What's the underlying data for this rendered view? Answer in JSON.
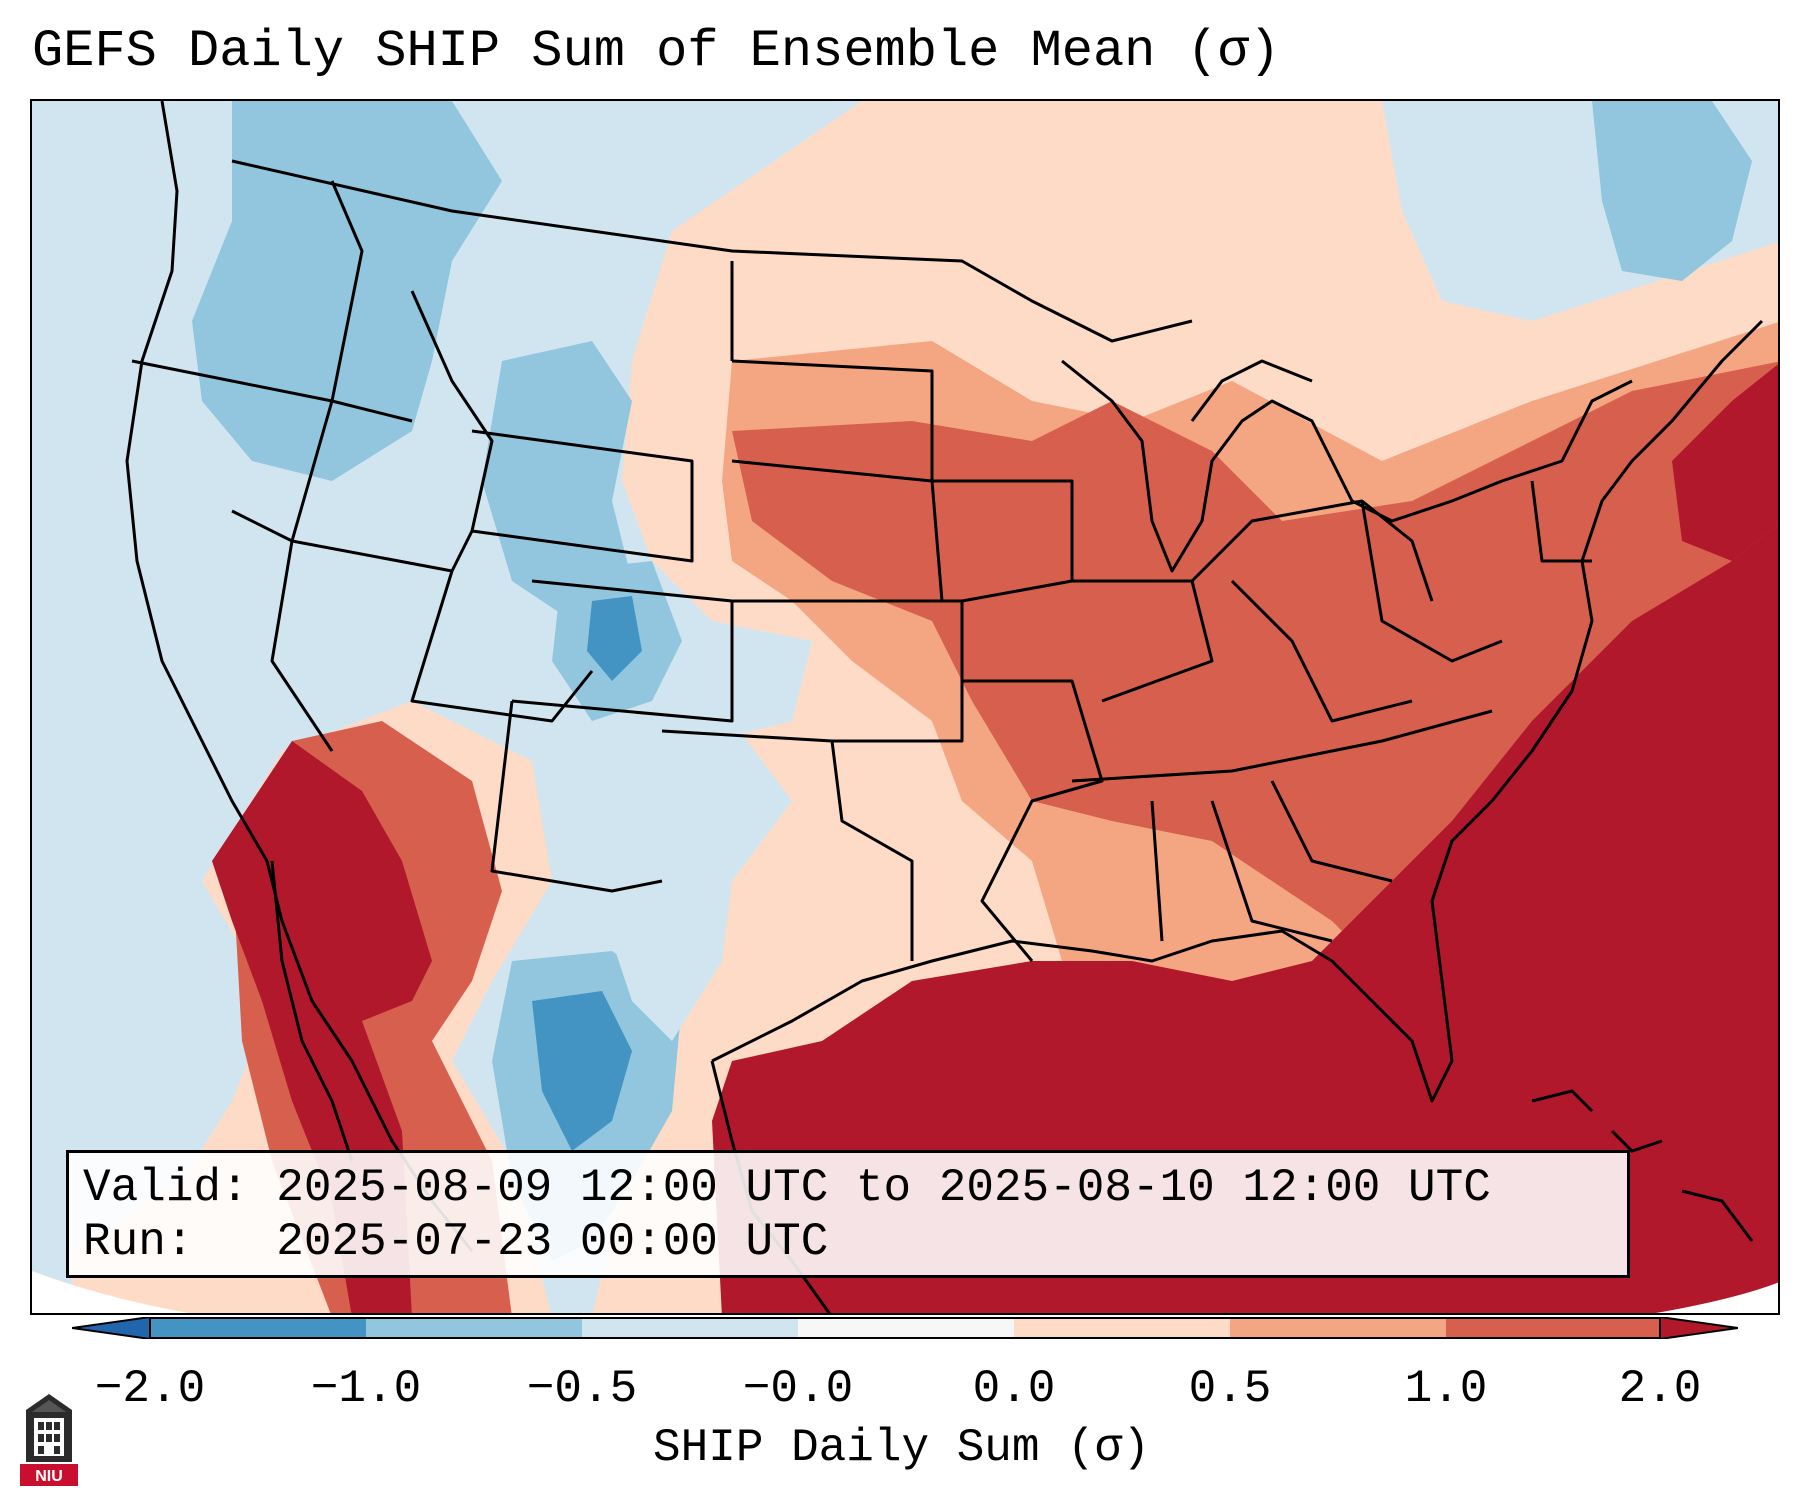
{
  "title": "GEFS Daily SHIP Sum of Ensemble Mean (σ)",
  "info": {
    "valid_text": "Valid: 2025-08-09 12:00 UTC to 2025-08-10 12:00 UTC",
    "run_text": "Run:   2025-07-23 00:00 UTC"
  },
  "colorbar": {
    "label": "SHIP Daily Sum (σ)",
    "tick_labels": [
      "−2.0",
      "−1.0",
      "−0.5",
      "−0.0",
      "0.0",
      "0.5",
      "1.0",
      "2.0"
    ],
    "bins": [
      {
        "range": "< -2.0",
        "color": "#2166ac"
      },
      {
        "range": "-2.0 to -1.0",
        "color": "#4393c3"
      },
      {
        "range": "-1.0 to -0.5",
        "color": "#92c5de"
      },
      {
        "range": "-0.5 to -0.0",
        "color": "#d1e5f0"
      },
      {
        "range": "-0.0 to 0.0",
        "color": "#f7f7f7"
      },
      {
        "range": "0.0 to 0.5",
        "color": "#fddbc7"
      },
      {
        "range": "0.5 to 1.0",
        "color": "#f4a582"
      },
      {
        "range": "1.0 to 2.0",
        "color": "#d6604d"
      },
      {
        "range": "> 2.0",
        "color": "#b2182b"
      }
    ]
  },
  "logo": {
    "text": "NIU",
    "icon": "university-tower-logo"
  },
  "colors": {
    "deep_red": "#b2182b",
    "red": "#d6604d",
    "salmon": "#f4a582",
    "peach": "#fddbc7",
    "light_blue": "#d1e5f0",
    "blue": "#92c5de",
    "mid_blue": "#4393c3"
  }
}
